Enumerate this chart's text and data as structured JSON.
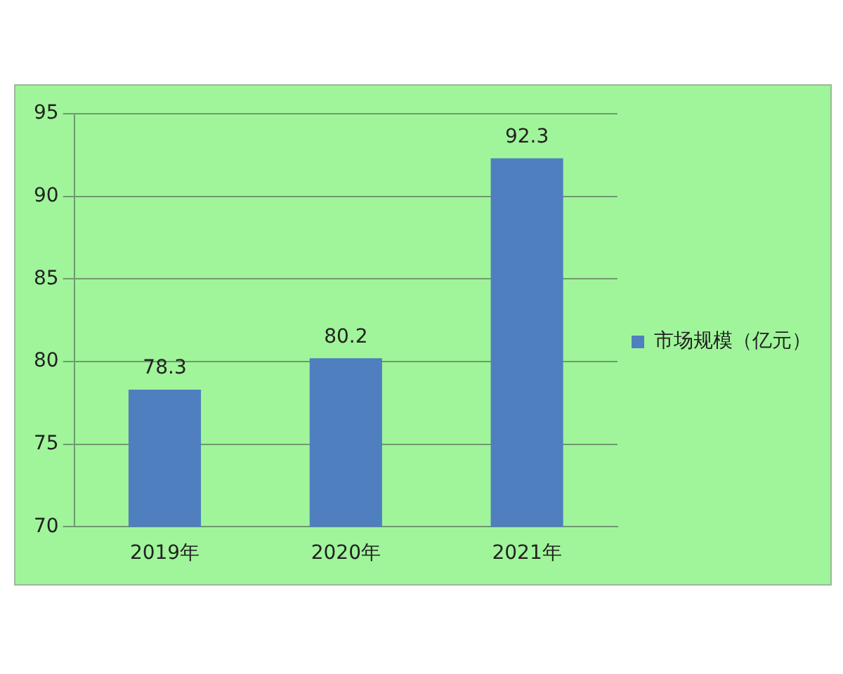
{
  "chart_data": {
    "type": "bar",
    "categories": [
      "2019年",
      "2020年",
      "2021年"
    ],
    "series": [
      {
        "name": "市场规模（亿元）",
        "color": "#4f7fbf",
        "values": [
          78.3,
          80.2,
          92.3
        ]
      }
    ],
    "ylim": [
      70,
      95
    ],
    "yticks": [
      70,
      75,
      80,
      85,
      90,
      95
    ],
    "grid": "y",
    "legend": "right",
    "data_labels": true
  }
}
